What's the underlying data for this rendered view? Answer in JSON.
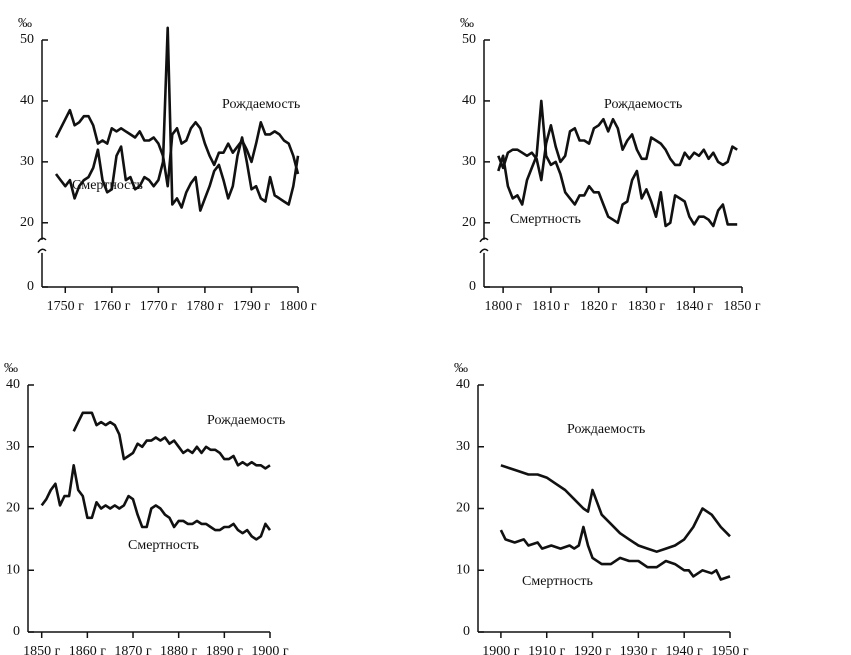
{
  "chart_data": [
    {
      "type": "line",
      "y_label": "‰",
      "xlim": [
        1745,
        1800
      ],
      "xticks": [
        {
          "value": 1750,
          "label": "1750 г"
        },
        {
          "value": 1760,
          "label": "1760 г"
        },
        {
          "value": 1770,
          "label": "1770 г"
        },
        {
          "value": 1780,
          "label": "1780 г"
        },
        {
          "value": 1790,
          "label": "1790 г"
        },
        {
          "value": 1800,
          "label": "1800 г"
        }
      ],
      "ylim": [
        0,
        50
      ],
      "yticks": [
        0,
        20,
        30,
        40,
        50
      ],
      "y_break": [
        0,
        20
      ],
      "series": [
        {
          "name": "Рождаемость",
          "color": "#111",
          "x": [
            1748,
            1750,
            1751,
            1752,
            1753,
            1754,
            1755,
            1756,
            1757,
            1758,
            1759,
            1760,
            1761,
            1762,
            1763,
            1764,
            1765,
            1766,
            1767,
            1768,
            1769,
            1770,
            1771,
            1772,
            1773,
            1774,
            1775,
            1776,
            1777,
            1778,
            1779,
            1780,
            1781,
            1782,
            1783,
            1784,
            1785,
            1786,
            1787,
            1788,
            1789,
            1790,
            1791,
            1792,
            1793,
            1794,
            1795,
            1796,
            1797,
            1798,
            1799,
            1800
          ],
          "values": [
            34,
            37,
            38.5,
            36,
            36.5,
            37.5,
            37.5,
            36,
            33,
            33.5,
            33,
            35.5,
            35,
            35.5,
            35,
            34.5,
            34,
            35,
            33.5,
            33.5,
            34,
            33,
            31,
            26,
            34.5,
            35.5,
            33,
            33.5,
            35.5,
            36.5,
            35.5,
            33,
            31,
            29.5,
            31.5,
            31.5,
            33,
            31.5,
            32.5,
            33.5,
            32,
            30,
            33,
            36.5,
            34.5,
            34.5,
            35,
            34.5,
            33.5,
            33,
            31,
            28
          ]
        },
        {
          "name": "Смертность",
          "color": "#111",
          "x": [
            1748,
            1749,
            1750,
            1751,
            1752,
            1753,
            1754,
            1755,
            1756,
            1757,
            1758,
            1759,
            1760,
            1761,
            1762,
            1763,
            1764,
            1765,
            1766,
            1767,
            1768,
            1769,
            1770,
            1771,
            1772,
            1773,
            1774,
            1775,
            1776,
            1777,
            1778,
            1779,
            1780,
            1781,
            1782,
            1783,
            1784,
            1785,
            1786,
            1787,
            1788,
            1789,
            1790,
            1791,
            1792,
            1793,
            1794,
            1795,
            1796,
            1797,
            1798,
            1799,
            1800
          ],
          "values": [
            28,
            27,
            26,
            27,
            24,
            26,
            27,
            27.5,
            29,
            32,
            27,
            25,
            25.5,
            31,
            32.5,
            27,
            27.5,
            25.5,
            26,
            27.5,
            27,
            26,
            27,
            30,
            52,
            23,
            24,
            22.5,
            25,
            26.5,
            27.5,
            22,
            24,
            26,
            28.5,
            29.5,
            27,
            24,
            26,
            31,
            34,
            30,
            25.5,
            26,
            24,
            23.5,
            27.5,
            24.5,
            24,
            23.5,
            23,
            26,
            31
          ]
        }
      ]
    },
    {
      "type": "line",
      "y_label": "‰",
      "xlim": [
        1796,
        1850
      ],
      "xticks": [
        {
          "value": 1800,
          "label": "1800 г"
        },
        {
          "value": 1810,
          "label": "1810 г"
        },
        {
          "value": 1820,
          "label": "1820 г"
        },
        {
          "value": 1830,
          "label": "1830 г"
        },
        {
          "value": 1840,
          "label": "1840 г"
        },
        {
          "value": 1850,
          "label": "1850 г"
        }
      ],
      "ylim": [
        0,
        50
      ],
      "yticks": [
        0,
        20,
        30,
        40,
        50
      ],
      "y_break": [
        0,
        20
      ],
      "series": [
        {
          "name": "Рождаемость",
          "color": "#111",
          "x": [
            1799,
            1800,
            1801,
            1802,
            1803,
            1804,
            1805,
            1806,
            1807,
            1808,
            1809,
            1810,
            1811,
            1812,
            1813,
            1814,
            1815,
            1816,
            1817,
            1818,
            1819,
            1820,
            1821,
            1822,
            1823,
            1824,
            1825,
            1826,
            1827,
            1828,
            1829,
            1830,
            1831,
            1832,
            1833,
            1834,
            1835,
            1836,
            1837,
            1838,
            1839,
            1840,
            1841,
            1842,
            1843,
            1844,
            1845,
            1846,
            1847,
            1848,
            1849
          ],
          "values": [
            31,
            29,
            31.5,
            32,
            32,
            31.5,
            31,
            31.5,
            30.5,
            27,
            33,
            36,
            32.5,
            30,
            31,
            35,
            35.5,
            33.5,
            33.5,
            33,
            35.5,
            36,
            37,
            35,
            37,
            35.5,
            32,
            33.5,
            34.5,
            32,
            30.5,
            30.5,
            34,
            33.5,
            33,
            32,
            30.5,
            29.5,
            29.5,
            31.5,
            30.5,
            31.5,
            31,
            32,
            30.5,
            31.5,
            30,
            29.5,
            30,
            32.5,
            32
          ]
        },
        {
          "name": "Смертность",
          "color": "#111",
          "x": [
            1799,
            1800,
            1801,
            1802,
            1803,
            1804,
            1805,
            1806,
            1807,
            1808,
            1809,
            1810,
            1811,
            1812,
            1813,
            1814,
            1815,
            1816,
            1817,
            1818,
            1819,
            1820,
            1821,
            1822,
            1823,
            1824,
            1825,
            1826,
            1827,
            1828,
            1829,
            1830,
            1831,
            1832,
            1833,
            1834,
            1835,
            1836,
            1837,
            1838,
            1839,
            1840,
            1841,
            1842,
            1843,
            1844,
            1845,
            1846,
            1847,
            1848,
            1849
          ],
          "values": [
            28.5,
            31,
            26,
            24,
            24.5,
            23,
            27,
            29,
            31,
            40,
            31,
            29.5,
            30,
            28,
            25,
            24,
            23,
            24.5,
            24.5,
            26,
            25,
            25,
            23,
            21,
            20.5,
            20,
            23,
            23.5,
            27,
            28.5,
            24,
            25.5,
            23.5,
            21,
            25,
            19,
            20,
            24.5,
            24,
            23.5,
            21,
            19.5,
            21,
            21,
            20.5,
            19,
            22,
            23,
            19.5,
            19.5,
            19.5
          ]
        }
      ]
    },
    {
      "type": "line",
      "y_label": "‰",
      "xlim": [
        1847,
        1900
      ],
      "xticks": [
        {
          "value": 1850,
          "label": "1850 г"
        },
        {
          "value": 1860,
          "label": "1860 г"
        },
        {
          "value": 1870,
          "label": "1870 г"
        },
        {
          "value": 1880,
          "label": "1880 г"
        },
        {
          "value": 1890,
          "label": "1890 г"
        },
        {
          "value": 1900,
          "label": "1900 г"
        }
      ],
      "ylim": [
        0,
        40
      ],
      "yticks": [
        0,
        10,
        20,
        30,
        40
      ],
      "series": [
        {
          "name": "Рождаемость",
          "color": "#111",
          "x": [
            1857,
            1858,
            1859,
            1860,
            1861,
            1862,
            1863,
            1864,
            1865,
            1866,
            1867,
            1868,
            1869,
            1870,
            1871,
            1872,
            1873,
            1874,
            1875,
            1876,
            1877,
            1878,
            1879,
            1880,
            1881,
            1882,
            1883,
            1884,
            1885,
            1886,
            1887,
            1888,
            1889,
            1890,
            1891,
            1892,
            1893,
            1894,
            1895,
            1896,
            1897,
            1898,
            1899,
            1900
          ],
          "values": [
            32.5,
            34,
            35.5,
            35.5,
            35.5,
            33.5,
            34,
            33.5,
            34,
            33.5,
            32,
            28,
            28.5,
            29,
            30.5,
            30,
            31,
            31,
            31.5,
            31,
            31.5,
            30.5,
            31,
            30,
            29,
            29.5,
            29,
            30,
            29,
            30,
            29.5,
            29.5,
            29,
            28,
            28,
            28.5,
            27,
            27.5,
            27,
            27.5,
            27,
            27,
            26.5,
            27
          ]
        },
        {
          "name": "Смертность",
          "color": "#111",
          "x": [
            1850,
            1851,
            1852,
            1853,
            1854,
            1855,
            1856,
            1857,
            1858,
            1859,
            1860,
            1861,
            1862,
            1863,
            1864,
            1865,
            1866,
            1867,
            1868,
            1869,
            1870,
            1871,
            1872,
            1873,
            1874,
            1875,
            1876,
            1877,
            1878,
            1879,
            1880,
            1881,
            1882,
            1883,
            1884,
            1885,
            1886,
            1887,
            1888,
            1889,
            1890,
            1891,
            1892,
            1893,
            1894,
            1895,
            1896,
            1897,
            1898,
            1899,
            1900
          ],
          "values": [
            20.5,
            21.5,
            23,
            24,
            20.5,
            22,
            22,
            27,
            23,
            22,
            18.5,
            18.5,
            21,
            20,
            20.5,
            20,
            20.5,
            20,
            20.5,
            22,
            21.5,
            19,
            17,
            17,
            20,
            20.5,
            20,
            19,
            18.5,
            17,
            18,
            18,
            17.5,
            17.5,
            18,
            17.5,
            17.5,
            17,
            16.5,
            16.5,
            17,
            17,
            17.5,
            16.5,
            16,
            16.5,
            15.5,
            15,
            15.5,
            17.5,
            16.5
          ]
        }
      ]
    },
    {
      "type": "line",
      "y_label": "‰",
      "xlim": [
        1895,
        1950
      ],
      "xticks": [
        {
          "value": 1900,
          "label": "1900 г"
        },
        {
          "value": 1910,
          "label": "1910 г"
        },
        {
          "value": 1920,
          "label": "1920 г"
        },
        {
          "value": 1930,
          "label": "1930 г"
        },
        {
          "value": 1940,
          "label": "1940 г"
        },
        {
          "value": 1950,
          "label": "1950 г"
        }
      ],
      "ylim": [
        0,
        40
      ],
      "yticks": [
        0,
        10,
        20,
        30,
        40
      ],
      "series": [
        {
          "name": "Рождаемость",
          "color": "#111",
          "x": [
            1900,
            1902,
            1904,
            1906,
            1908,
            1910,
            1912,
            1914,
            1916,
            1918,
            1919,
            1920,
            1921,
            1922,
            1924,
            1926,
            1928,
            1930,
            1932,
            1934,
            1936,
            1938,
            1940,
            1942,
            1944,
            1946,
            1948,
            1950
          ],
          "values": [
            27,
            26.5,
            26,
            25.5,
            25.5,
            25,
            24,
            23,
            21.5,
            20,
            19.5,
            23,
            21,
            19,
            17.5,
            16,
            15,
            14,
            13.5,
            13,
            13.5,
            14,
            15,
            17,
            20,
            19,
            17,
            15.5
          ]
        },
        {
          "name": "Смертность",
          "color": "#111",
          "x": [
            1900,
            1901,
            1903,
            1905,
            1906,
            1908,
            1909,
            1911,
            1913,
            1915,
            1916,
            1917,
            1918,
            1919,
            1920,
            1922,
            1924,
            1926,
            1928,
            1930,
            1932,
            1934,
            1936,
            1938,
            1940,
            1941,
            1942,
            1944,
            1946,
            1947,
            1948,
            1950
          ],
          "values": [
            16.5,
            15,
            14.5,
            15,
            14,
            14.5,
            13.5,
            14,
            13.5,
            14,
            13.5,
            14,
            17,
            14,
            12,
            11,
            11,
            12,
            11.5,
            11.5,
            10.5,
            10.5,
            11.5,
            11,
            10,
            10,
            9,
            10,
            9.5,
            10,
            8.5,
            9
          ]
        }
      ]
    }
  ]
}
